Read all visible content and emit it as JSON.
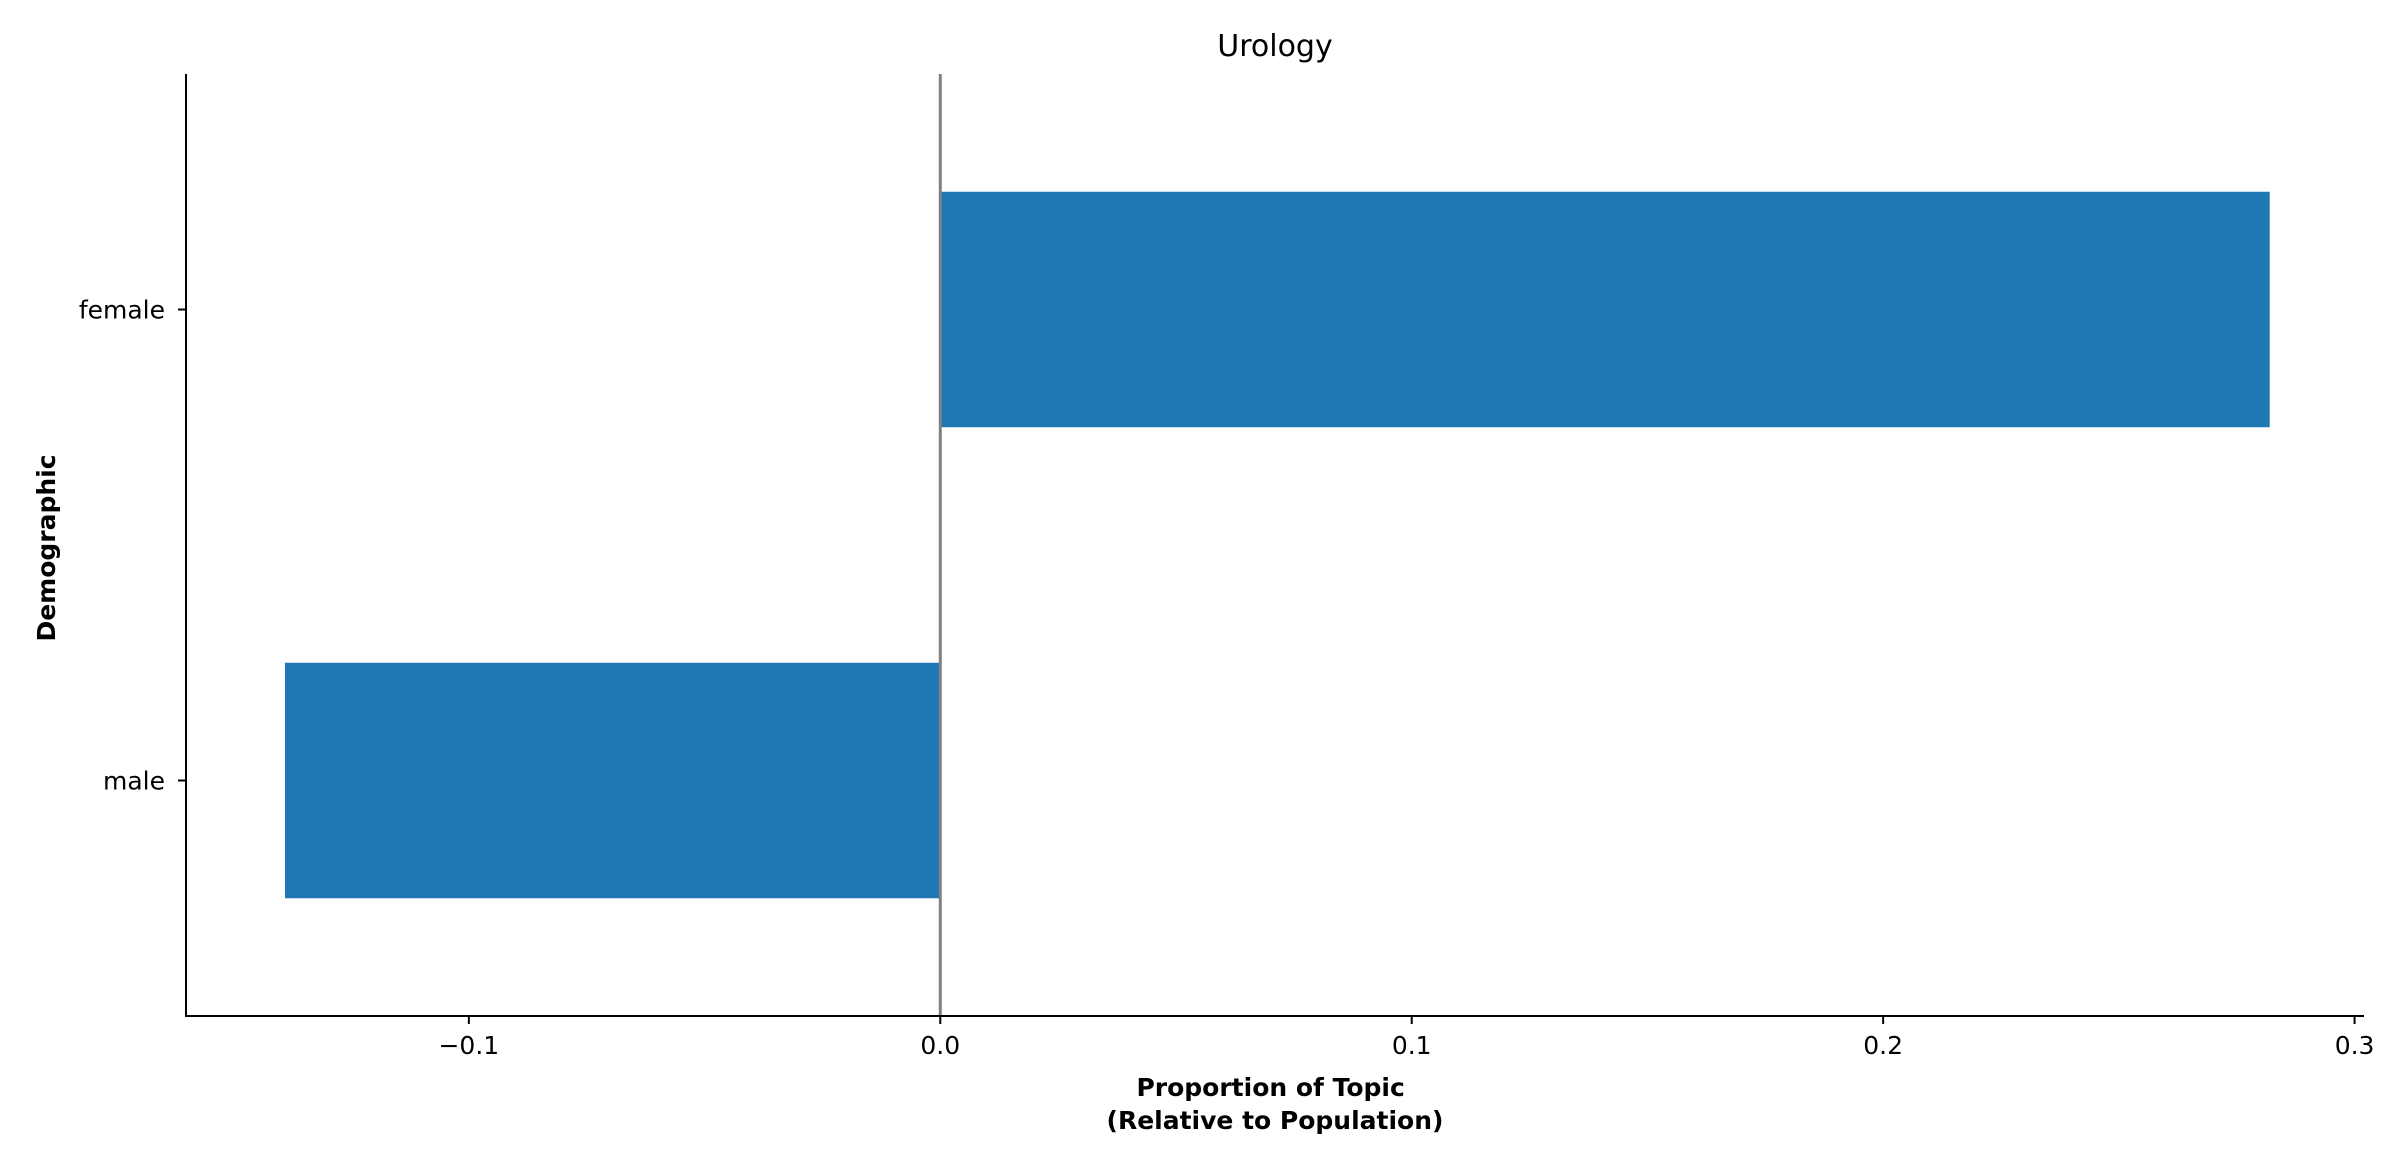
{
  "chart_data": {
    "type": "bar",
    "orientation": "horizontal",
    "title": "Urology",
    "xlabel_lines": [
      "Proportion of Topic",
      "(Relative to Population)"
    ],
    "ylabel": "Demographic",
    "categories": [
      "female",
      "male"
    ],
    "values": [
      0.282,
      -0.139
    ],
    "xlim": [
      -0.16,
      0.302
    ],
    "xticks": [
      -0.1,
      0.0,
      0.1,
      0.2,
      0.3
    ],
    "xtick_labels": [
      "−0.1",
      "0.0",
      "0.1",
      "0.2",
      "0.3"
    ],
    "zero_line": true,
    "grid": false,
    "legend": false,
    "colors": {
      "bar": "#1f77b4",
      "zero_line": "#808080",
      "axis": "#000000"
    }
  }
}
